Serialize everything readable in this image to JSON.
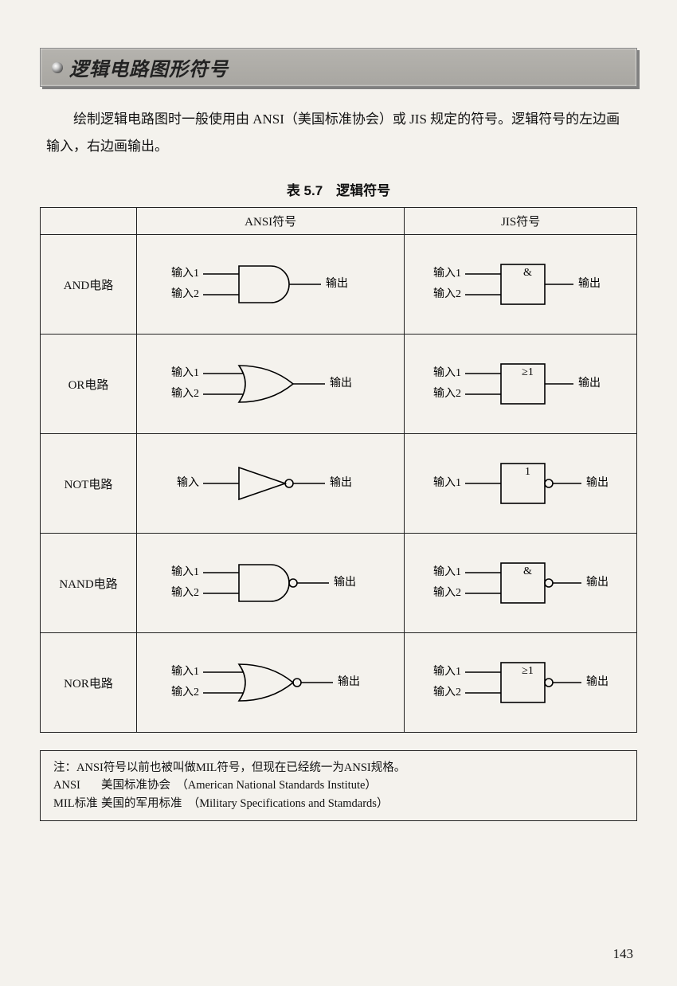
{
  "page_title": "逻辑电路图形符号",
  "intro_text": "绘制逻辑电路图时一般使用由 ANSI（美国标准协会）或 JIS 规定的符号。逻辑符号的左边画输入，右边画输出。",
  "table_caption": "表 5.7　逻辑符号",
  "col_empty": "",
  "col_ansi": "ANSI符号",
  "col_jis": "JIS符号",
  "gates": [
    {
      "name": "AND电路",
      "ansi": "and",
      "jis_sym": "&",
      "jis_bubble": false,
      "inputs": 2
    },
    {
      "name": "OR电路",
      "ansi": "or",
      "jis_sym": "≥1",
      "jis_bubble": false,
      "inputs": 2
    },
    {
      "name": "NOT电路",
      "ansi": "not",
      "jis_sym": "1",
      "jis_bubble": true,
      "inputs": 1
    },
    {
      "name": "NAND电路",
      "ansi": "nand",
      "jis_sym": "&",
      "jis_bubble": true,
      "inputs": 2
    },
    {
      "name": "NOR电路",
      "ansi": "nor",
      "jis_sym": "≥1",
      "jis_bubble": true,
      "inputs": 2
    }
  ],
  "labels": {
    "in1": "输入1",
    "in2": "输入2",
    "in": "输入",
    "out": "输出"
  },
  "note": {
    "line1": "注：ANSI符号以前也被叫做MIL符号，但现在已经统一为ANSI规格。",
    "ansi_key": "ANSI",
    "ansi_val": "美国标准协会　（American National Standards Institute）",
    "mil_key": "MIL标准",
    "mil_val": "美国的军用标准　（Military Specifications and Stamdards）"
  },
  "page_number": "143",
  "svg": {
    "stroke": "#000000",
    "stroke_width": 1.6,
    "ansi_width": 300,
    "ansi_height": 90,
    "jis_width": 260,
    "jis_height": 90
  }
}
